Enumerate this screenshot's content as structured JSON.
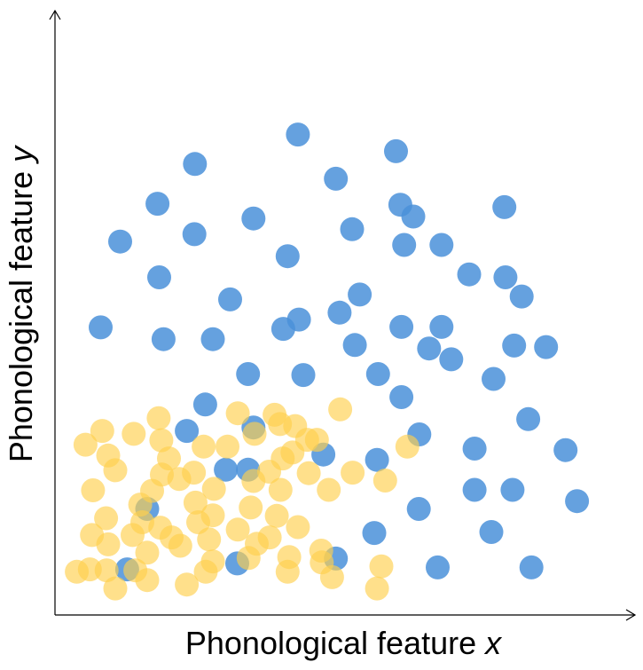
{
  "chart_data": {
    "type": "scatter",
    "title": "",
    "xlabel_main": "Phonological feature ",
    "xlabel_var": "x",
    "ylabel_main": "Phonological feature ",
    "ylabel_var": "y",
    "xlim": [
      0,
      100
    ],
    "ylim": [
      0,
      100
    ],
    "grid": false,
    "legend": "none",
    "series": [
      {
        "color": "#4a90d9",
        "points": [
          [
            42.7,
            93.2
          ],
          [
            60.8,
            89.8
          ],
          [
            23.7,
            87.2
          ],
          [
            49.7,
            84.2
          ],
          [
            16.8,
            79.1
          ],
          [
            61.6,
            78.9
          ],
          [
            80.8,
            78.4
          ],
          [
            64.0,
            76.5
          ],
          [
            34.5,
            76.1
          ],
          [
            52.7,
            73.9
          ],
          [
            23.6,
            72.9
          ],
          [
            9.9,
            71.4
          ],
          [
            62.3,
            70.7
          ],
          [
            69.2,
            70.7
          ],
          [
            40.8,
            68.4
          ],
          [
            74.3,
            64.7
          ],
          [
            17.1,
            64.1
          ],
          [
            81.0,
            64.1
          ],
          [
            54.1,
            60.6
          ],
          [
            84.0,
            60.2
          ],
          [
            30.2,
            59.6
          ],
          [
            50.4,
            56.9
          ],
          [
            42.9,
            55.5
          ],
          [
            61.8,
            54.0
          ],
          [
            69.2,
            54.0
          ],
          [
            6.3,
            53.9
          ],
          [
            40.0,
            53.6
          ],
          [
            17.9,
            51.5
          ],
          [
            27.0,
            51.5
          ],
          [
            53.2,
            50.3
          ],
          [
            82.6,
            50.2
          ],
          [
            88.5,
            49.9
          ],
          [
            66.9,
            49.6
          ],
          [
            71.0,
            47.4
          ],
          [
            33.5,
            44.4
          ],
          [
            43.7,
            44.2
          ],
          [
            57.5,
            44.4
          ],
          [
            78.8,
            43.4
          ],
          [
            61.8,
            39.7
          ],
          [
            25.6,
            38.2
          ],
          [
            85.2,
            35.2
          ],
          [
            34.5,
            33.5
          ],
          [
            22.2,
            32.8
          ],
          [
            65.1,
            32.1
          ],
          [
            75.3,
            29.2
          ],
          [
            92.1,
            28.9
          ],
          [
            47.4,
            28.0
          ],
          [
            57.3,
            26.9
          ],
          [
            29.4,
            24.9
          ],
          [
            33.5,
            24.9
          ],
          [
            75.3,
            20.8
          ],
          [
            82.3,
            20.8
          ],
          [
            94.2,
            18.5
          ],
          [
            14.9,
            16.9
          ],
          [
            65.0,
            16.9
          ],
          [
            78.4,
            12.2
          ],
          [
            56.8,
            12.0
          ],
          [
            49.7,
            6.8
          ],
          [
            68.5,
            5.0
          ],
          [
            85.8,
            5.0
          ],
          [
            31.5,
            5.8
          ],
          [
            11.2,
            4.6
          ]
        ]
      },
      {
        "color": "#ffd04d",
        "points": [
          [
            50.5,
            37.2
          ],
          [
            31.6,
            36.4
          ],
          [
            38.4,
            36.1
          ],
          [
            17.0,
            35.4
          ],
          [
            39.4,
            34.2
          ],
          [
            42.2,
            33.8
          ],
          [
            6.6,
            32.8
          ],
          [
            12.4,
            32.2
          ],
          [
            34.7,
            32.2
          ],
          [
            44.4,
            31.0
          ],
          [
            17.5,
            30.9
          ],
          [
            46.2,
            31.0
          ],
          [
            3.5,
            30.0
          ],
          [
            25.3,
            29.6
          ],
          [
            29.7,
            29.6
          ],
          [
            62.9,
            29.6
          ],
          [
            41.7,
            28.4
          ],
          [
            7.7,
            27.8
          ],
          [
            18.9,
            27.2
          ],
          [
            39.9,
            27.2
          ],
          [
            9.0,
            24.8
          ],
          [
            23.5,
            24.3
          ],
          [
            37.4,
            24.5
          ],
          [
            44.7,
            24.2
          ],
          [
            52.8,
            24.3
          ],
          [
            17.6,
            23.9
          ],
          [
            20.8,
            23.0
          ],
          [
            34.5,
            22.6
          ],
          [
            58.8,
            22.7
          ],
          [
            4.9,
            20.7
          ],
          [
            15.8,
            20.6
          ],
          [
            27.2,
            21.0
          ],
          [
            39.5,
            20.8
          ],
          [
            48.4,
            20.8
          ],
          [
            23.8,
            18.2
          ],
          [
            13.6,
            17.8
          ],
          [
            34.0,
            17.2
          ],
          [
            27.0,
            15.6
          ],
          [
            38.8,
            15.5
          ],
          [
            7.3,
            15.0
          ],
          [
            14.0,
            14.2
          ],
          [
            24.3,
            14.2
          ],
          [
            17.3,
            13.1
          ],
          [
            31.6,
            12.7
          ],
          [
            42.7,
            13.2
          ],
          [
            4.7,
            11.6
          ],
          [
            12.2,
            11.6
          ],
          [
            19.4,
            11.1
          ],
          [
            37.5,
            11.1
          ],
          [
            26.3,
            10.7
          ],
          [
            35.1,
            9.8
          ],
          [
            7.7,
            9.7
          ],
          [
            21.0,
            9.4
          ],
          [
            47.0,
            8.4
          ],
          [
            14.9,
            8.0
          ],
          [
            41.1,
            7.1
          ],
          [
            33.6,
            6.9
          ],
          [
            27.0,
            6.2
          ],
          [
            47.1,
            6.0
          ],
          [
            58.1,
            5.2
          ],
          [
            4.3,
            4.6
          ],
          [
            7.4,
            4.4
          ],
          [
            12.7,
            4.4
          ],
          [
            1.9,
            4.1
          ],
          [
            25.7,
            4.1
          ],
          [
            40.8,
            4.1
          ],
          [
            49.0,
            3.0
          ],
          [
            14.9,
            2.4
          ],
          [
            22.2,
            1.5
          ],
          [
            9.0,
            0.7
          ],
          [
            57.3,
            0.7
          ]
        ]
      }
    ]
  }
}
